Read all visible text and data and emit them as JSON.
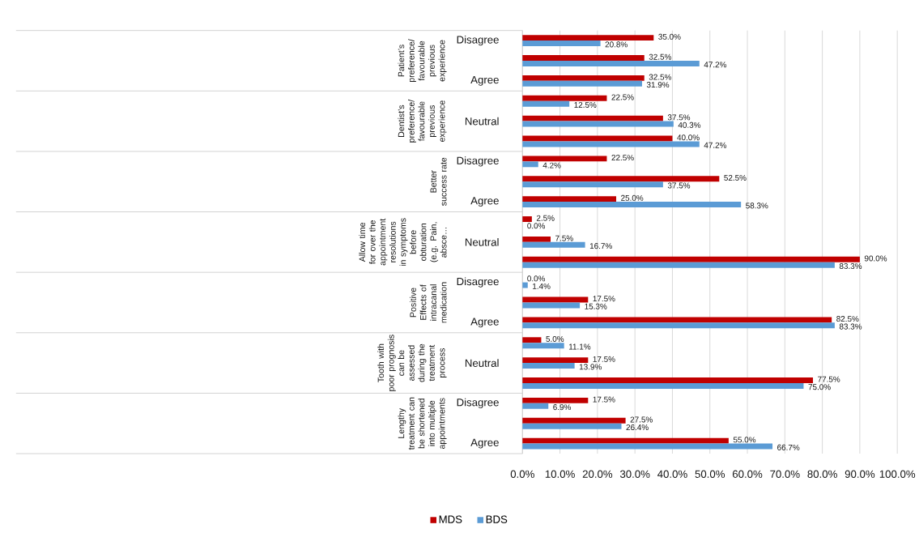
{
  "chart_data": {
    "type": "bar",
    "orientation": "horizontal",
    "categories": [
      "Disagree",
      null,
      "Agree",
      null,
      "Neutral",
      null,
      "Disagree",
      null,
      "Agree",
      null,
      "Neutral",
      null,
      "Disagree",
      null,
      "Agree",
      null,
      "Neutral",
      null,
      "Disagree",
      null,
      "Agree"
    ],
    "series": [
      {
        "name": "MDS",
        "color": "#c00000",
        "values": [
          35.0,
          32.5,
          32.5,
          22.5,
          37.5,
          40.0,
          22.5,
          52.5,
          25.0,
          2.5,
          7.5,
          90.0,
          0.0,
          17.5,
          82.5,
          5.0,
          17.5,
          77.5,
          17.5,
          27.5,
          55.0
        ],
        "value_labels": [
          "35.0%",
          "32.5%",
          "32.5%",
          "22.5%",
          "37.5%",
          "40.0%",
          "22.5%",
          "52.5%",
          "25.0%",
          "2.5%",
          "7.5%",
          "90.0%",
          "0.0%",
          "17.5%",
          "82.5%",
          "5.0%",
          "17.5%",
          "77.5%",
          "17.5%",
          "27.5%",
          "55.0%"
        ]
      },
      {
        "name": "BDS",
        "color": "#5b9bd5",
        "values": [
          20.8,
          47.2,
          31.9,
          12.5,
          40.3,
          47.2,
          4.2,
          37.5,
          58.3,
          0.0,
          16.7,
          83.3,
          1.4,
          15.3,
          83.3,
          11.1,
          13.9,
          75.0,
          6.9,
          26.4,
          66.7
        ],
        "value_labels": [
          "20.8%",
          "47.2%",
          "31.9%",
          "12.5%",
          "40.3%",
          "47.2%",
          "4.2%",
          "37.5%",
          "58.3%",
          "0.0%",
          "16.7%",
          "83.3%",
          "1.4%",
          "15.3%",
          "83.3%",
          "11.1%",
          "13.9%",
          "75.0%",
          "6.9%",
          "26.4%",
          "66.7%"
        ]
      }
    ],
    "xlim": [
      0,
      100
    ],
    "xticks": [
      {
        "value": 0,
        "label": "0.0%"
      },
      {
        "value": 10,
        "label": "10.0%"
      },
      {
        "value": 20,
        "label": "20.0%"
      },
      {
        "value": 30,
        "label": "30.0%"
      },
      {
        "value": 40,
        "label": "40.0%"
      },
      {
        "value": 50,
        "label": "50.0%"
      },
      {
        "value": 60,
        "label": "60.0%"
      },
      {
        "value": 70,
        "label": "70.0%"
      },
      {
        "value": 80,
        "label": "80.0%"
      },
      {
        "value": 90,
        "label": "90.0%"
      },
      {
        "value": 100,
        "label": "100.0%"
      }
    ],
    "grid": "x",
    "legend": "bottom",
    "annotations": [
      "Patient’s preference/favourable previous experience",
      "Dentist’s preference/favourable previous experience",
      "Better success rate",
      "Allow time for over the appointment resolutions in symptoms before obturation (e.g. Pain, absce…",
      "Positive Effects of intracanal medication",
      "Tooth with poor prognosis can be assessed during the treatment process",
      "Lengthy treatment can be shortened into multiple appointments"
    ]
  }
}
